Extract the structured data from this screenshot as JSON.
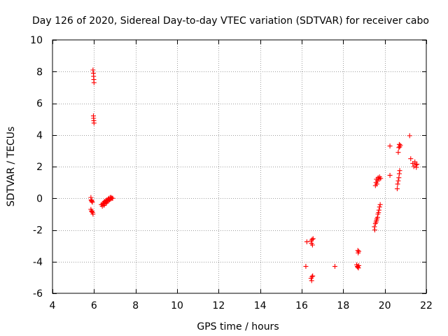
{
  "chart_data": {
    "type": "scatter",
    "title": "Day 126 of 2020, Sidereal Day-to-day VTEC variation (SDTVAR) for receiver cabo",
    "xlabel": "GPS time / hours",
    "ylabel": "SDTVAR / TECUs",
    "xlim": [
      4,
      22
    ],
    "ylim": [
      -6,
      10
    ],
    "xticks": [
      4,
      6,
      8,
      10,
      12,
      14,
      16,
      18,
      20,
      22
    ],
    "yticks": [
      -6,
      -4,
      -2,
      0,
      2,
      4,
      6,
      8,
      10
    ],
    "xtick_labels": [
      "4",
      "6",
      "8",
      "10",
      "12",
      "14",
      "16",
      "18",
      "20",
      "22"
    ],
    "ytick_labels": [
      "-6",
      "-4",
      "-2",
      "0",
      "2",
      "4",
      "6",
      "8",
      "10"
    ],
    "grid": true,
    "marker": "+",
    "series": [
      {
        "name": "SDTVAR",
        "color": "#ff0000",
        "points": [
          [
            5.95,
            8.1
          ],
          [
            5.97,
            7.9
          ],
          [
            5.98,
            7.7
          ],
          [
            5.99,
            7.5
          ],
          [
            6.0,
            7.3
          ],
          [
            5.97,
            5.2
          ],
          [
            5.98,
            5.05
          ],
          [
            5.99,
            4.9
          ],
          [
            6.0,
            4.75
          ],
          [
            5.85,
            0.05
          ],
          [
            5.86,
            -0.1
          ],
          [
            5.88,
            -0.15
          ],
          [
            5.9,
            -0.2
          ],
          [
            5.92,
            -0.25
          ],
          [
            5.85,
            -0.7
          ],
          [
            5.88,
            -0.8
          ],
          [
            5.9,
            -0.85
          ],
          [
            5.93,
            -0.9
          ],
          [
            5.95,
            -1.0
          ],
          [
            6.35,
            -0.4
          ],
          [
            6.4,
            -0.5
          ],
          [
            6.42,
            -0.35
          ],
          [
            6.45,
            -0.3
          ],
          [
            6.48,
            -0.45
          ],
          [
            6.5,
            -0.2
          ],
          [
            6.52,
            -0.35
          ],
          [
            6.55,
            -0.25
          ],
          [
            6.57,
            -0.15
          ],
          [
            6.6,
            -0.3
          ],
          [
            6.62,
            -0.1
          ],
          [
            6.65,
            -0.2
          ],
          [
            6.68,
            -0.05
          ],
          [
            6.7,
            -0.15
          ],
          [
            6.72,
            0.0
          ],
          [
            6.75,
            -0.1
          ],
          [
            6.78,
            0.05
          ],
          [
            6.8,
            -0.05
          ],
          [
            6.83,
            0.05
          ],
          [
            6.86,
            0.0
          ],
          [
            6.9,
            0.0
          ],
          [
            16.2,
            -4.3
          ],
          [
            16.25,
            -2.75
          ],
          [
            16.45,
            -2.7
          ],
          [
            16.47,
            -2.85
          ],
          [
            16.5,
            -2.6
          ],
          [
            16.52,
            -2.95
          ],
          [
            16.55,
            -2.55
          ],
          [
            16.45,
            -5.05
          ],
          [
            16.48,
            -5.2
          ],
          [
            16.5,
            -4.95
          ],
          [
            16.53,
            -4.9
          ],
          [
            17.6,
            -4.3
          ],
          [
            18.7,
            -3.3
          ],
          [
            18.72,
            -3.45
          ],
          [
            18.75,
            -3.35
          ],
          [
            18.65,
            -4.2
          ],
          [
            18.68,
            -4.3
          ],
          [
            18.7,
            -4.35
          ],
          [
            18.73,
            -4.4
          ],
          [
            18.75,
            -4.25
          ],
          [
            19.5,
            -1.8
          ],
          [
            19.52,
            -2.0
          ],
          [
            19.55,
            -1.6
          ],
          [
            19.58,
            -1.5
          ],
          [
            19.6,
            -1.4
          ],
          [
            19.62,
            -1.3
          ],
          [
            19.65,
            -1.2
          ],
          [
            19.67,
            -1.0
          ],
          [
            19.7,
            -0.9
          ],
          [
            19.72,
            -0.75
          ],
          [
            19.75,
            -0.55
          ],
          [
            19.78,
            -0.4
          ],
          [
            19.55,
            0.8
          ],
          [
            19.58,
            1.0
          ],
          [
            19.6,
            1.2
          ],
          [
            19.62,
            0.9
          ],
          [
            19.65,
            1.1
          ],
          [
            19.68,
            1.3
          ],
          [
            19.72,
            1.2
          ],
          [
            19.75,
            1.35
          ],
          [
            19.8,
            1.25
          ],
          [
            20.25,
            3.3
          ],
          [
            20.25,
            1.45
          ],
          [
            20.6,
            0.6
          ],
          [
            20.62,
            0.9
          ],
          [
            20.65,
            1.1
          ],
          [
            20.68,
            1.3
          ],
          [
            20.7,
            1.55
          ],
          [
            20.72,
            1.75
          ],
          [
            20.65,
            2.9
          ],
          [
            20.68,
            3.2
          ],
          [
            20.7,
            3.4
          ],
          [
            20.72,
            3.25
          ],
          [
            20.75,
            3.35
          ],
          [
            21.2,
            3.95
          ],
          [
            21.25,
            2.5
          ],
          [
            21.35,
            2.2
          ],
          [
            21.4,
            2.0
          ],
          [
            21.45,
            2.3
          ],
          [
            21.5,
            2.1
          ],
          [
            21.52,
            1.95
          ],
          [
            21.55,
            2.15
          ]
        ]
      }
    ]
  }
}
